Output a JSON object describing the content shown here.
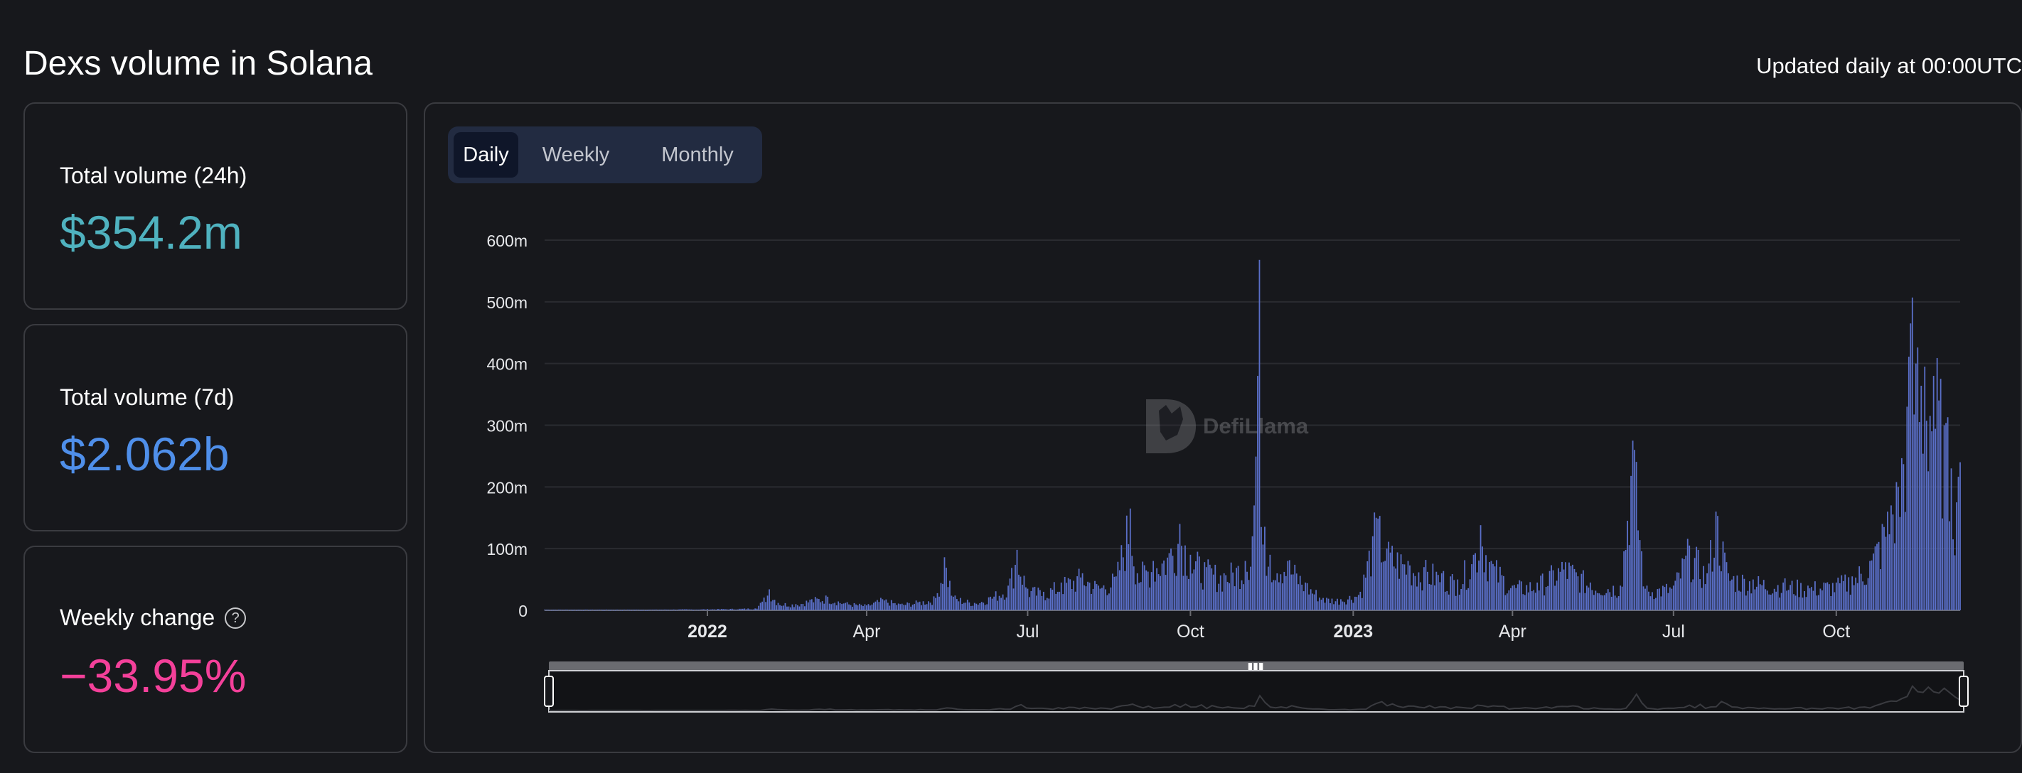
{
  "page": {
    "title": "Dexs volume in Solana",
    "updated": "Updated daily at 00:00UTC"
  },
  "stats": [
    {
      "label": "Total volume (24h)",
      "value": "$354.2m",
      "color": "#4fb2bf"
    },
    {
      "label": "Total volume (7d)",
      "value": "$2.062b",
      "color": "#4f8fea"
    },
    {
      "label": "Weekly change",
      "value": "−33.95%",
      "color": "#f4409a",
      "help_icon": "question-circle-icon"
    }
  ],
  "tabs": [
    {
      "label": "Daily",
      "active": true
    },
    {
      "label": "Weekly",
      "active": false
    },
    {
      "label": "Monthly",
      "active": false
    }
  ],
  "watermark": "DefiLlama",
  "chart_data": {
    "type": "bar",
    "title": "",
    "xlabel": "",
    "ylabel": "",
    "ylim": [
      0,
      600
    ],
    "y_unit": "m",
    "y_ticks": [
      "0",
      "100m",
      "200m",
      "300m",
      "400m",
      "500m",
      "600m"
    ],
    "x_ticks": [
      {
        "label": "2022",
        "date": "2022-01-01",
        "bold": true
      },
      {
        "label": "Apr",
        "date": "2022-04-01",
        "bold": false
      },
      {
        "label": "Jul",
        "date": "2022-07-01",
        "bold": false
      },
      {
        "label": "Oct",
        "date": "2022-10-01",
        "bold": false
      },
      {
        "label": "2023",
        "date": "2023-01-01",
        "bold": true
      },
      {
        "label": "Apr",
        "date": "2023-04-01",
        "bold": false
      },
      {
        "label": "Jul",
        "date": "2023-07-01",
        "bold": false
      },
      {
        "label": "Oct",
        "date": "2023-10-01",
        "bold": false
      }
    ],
    "x_range": [
      "2021-10-01",
      "2023-12-10"
    ],
    "bar_color": "#5a6fc8",
    "grid": true,
    "series": [
      {
        "values": [
          [
            "2021-10-01",
            1
          ],
          [
            "2021-11-01",
            1
          ],
          [
            "2021-12-01",
            1
          ],
          [
            "2022-01-10",
            2
          ],
          [
            "2022-01-28",
            3
          ],
          [
            "2022-02-01",
            14
          ],
          [
            "2022-02-05",
            34
          ],
          [
            "2022-02-10",
            12
          ],
          [
            "2022-02-20",
            10
          ],
          [
            "2022-03-01",
            18
          ],
          [
            "2022-03-10",
            22
          ],
          [
            "2022-03-20",
            12
          ],
          [
            "2022-04-01",
            8
          ],
          [
            "2022-04-10",
            18
          ],
          [
            "2022-04-20",
            10
          ],
          [
            "2022-05-01",
            14
          ],
          [
            "2022-05-10",
            20
          ],
          [
            "2022-05-15",
            86
          ],
          [
            "2022-05-20",
            22
          ],
          [
            "2022-06-01",
            12
          ],
          [
            "2022-06-10",
            22
          ],
          [
            "2022-06-20",
            40
          ],
          [
            "2022-06-25",
            98
          ],
          [
            "2022-07-01",
            35
          ],
          [
            "2022-07-10",
            30
          ],
          [
            "2022-07-20",
            45
          ],
          [
            "2022-08-01",
            60
          ],
          [
            "2022-08-10",
            40
          ],
          [
            "2022-08-20",
            55
          ],
          [
            "2022-08-28",
            165
          ],
          [
            "2022-09-01",
            60
          ],
          [
            "2022-09-10",
            80
          ],
          [
            "2022-09-20",
            100
          ],
          [
            "2022-09-25",
            140
          ],
          [
            "2022-10-01",
            90
          ],
          [
            "2022-10-10",
            70
          ],
          [
            "2022-10-20",
            60
          ],
          [
            "2022-11-01",
            80
          ],
          [
            "2022-11-05",
            120
          ],
          [
            "2022-11-08",
            380
          ],
          [
            "2022-11-09",
            568
          ],
          [
            "2022-11-10",
            135
          ],
          [
            "2022-11-15",
            90
          ],
          [
            "2022-11-25",
            80
          ],
          [
            "2022-12-05",
            45
          ],
          [
            "2022-12-15",
            20
          ],
          [
            "2022-12-25",
            18
          ],
          [
            "2023-01-05",
            30
          ],
          [
            "2023-01-12",
            120
          ],
          [
            "2023-01-14",
            150
          ],
          [
            "2023-01-20",
            100
          ],
          [
            "2023-02-01",
            80
          ],
          [
            "2023-02-10",
            70
          ],
          [
            "2023-02-20",
            60
          ],
          [
            "2023-03-01",
            50
          ],
          [
            "2023-03-10",
            90
          ],
          [
            "2023-03-14",
            138
          ],
          [
            "2023-03-20",
            80
          ],
          [
            "2023-04-01",
            40
          ],
          [
            "2023-04-15",
            45
          ],
          [
            "2023-05-01",
            78
          ],
          [
            "2023-05-15",
            45
          ],
          [
            "2023-06-01",
            40
          ],
          [
            "2023-06-08",
            275
          ],
          [
            "2023-06-15",
            35
          ],
          [
            "2023-07-01",
            40
          ],
          [
            "2023-07-10",
            105
          ],
          [
            "2023-07-20",
            60
          ],
          [
            "2023-07-25",
            160
          ],
          [
            "2023-08-01",
            60
          ],
          [
            "2023-08-15",
            50
          ],
          [
            "2023-09-01",
            45
          ],
          [
            "2023-09-15",
            40
          ],
          [
            "2023-10-01",
            45
          ],
          [
            "2023-10-10",
            55
          ],
          [
            "2023-10-20",
            80
          ],
          [
            "2023-10-28",
            135
          ],
          [
            "2023-11-01",
            170
          ],
          [
            "2023-11-05",
            200
          ],
          [
            "2023-11-10",
            330
          ],
          [
            "2023-11-12",
            465
          ],
          [
            "2023-11-15",
            400
          ],
          [
            "2023-11-20",
            395
          ],
          [
            "2023-11-25",
            380
          ],
          [
            "2023-12-01",
            300
          ],
          [
            "2023-12-05",
            230
          ],
          [
            "2023-12-08",
            175
          ],
          [
            "2023-12-10",
            240
          ]
        ]
      }
    ]
  }
}
